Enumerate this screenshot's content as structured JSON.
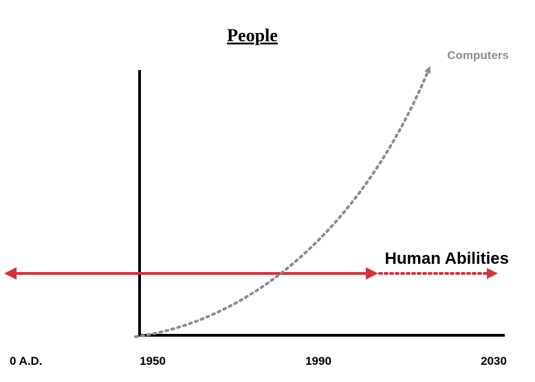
{
  "chart_data": {
    "type": "line",
    "title": "People",
    "xlabel": "",
    "ylabel": "",
    "x_ticks": [
      "0 A.D.",
      "1950",
      "1990",
      "2030"
    ],
    "grid": false,
    "series": [
      {
        "name": "Computers",
        "style": "dotted",
        "color": "#8c8c8c",
        "x": [
          1950,
          1960,
          1970,
          1980,
          1990,
          2000,
          2010,
          2018
        ],
        "y": [
          0.0,
          0.04,
          0.12,
          0.27,
          0.45,
          0.66,
          0.9,
          1.0
        ]
      },
      {
        "name": "Human Abilities",
        "style": "solid-then-dotted",
        "color": "#d9303b",
        "x": [
          "0 A.D.",
          2010,
          2030
        ],
        "y": [
          0.24,
          0.24,
          0.24
        ],
        "solid_until": 2010
      }
    ]
  }
}
